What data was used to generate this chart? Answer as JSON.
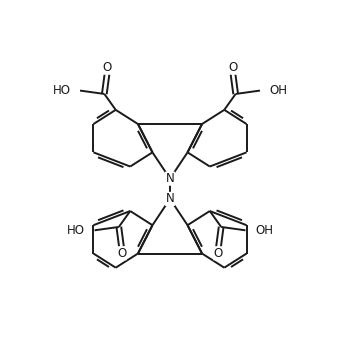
{
  "background": "#ffffff",
  "line_color": "#1a1a1a",
  "line_width": 1.4,
  "font_size": 8.5,
  "figsize": [
    3.4,
    3.59
  ],
  "dpi": 100,
  "xlim": [
    0,
    10
  ],
  "ylim": [
    0,
    10.55
  ]
}
